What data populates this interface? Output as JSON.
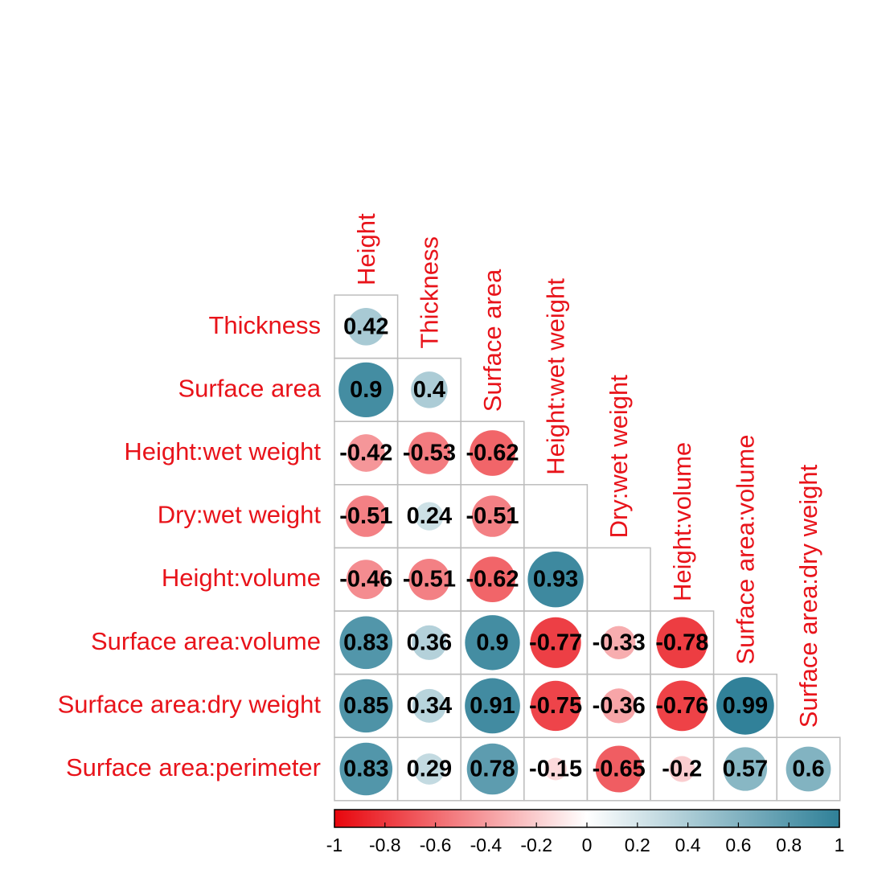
{
  "chart_data": {
    "type": "heatmap",
    "subtype": "correlation-matrix-lower-triangle",
    "variables": [
      "Height",
      "Thickness",
      "Surface area",
      "Height:wet weight",
      "Dry:wet weight",
      "Height:volume",
      "Surface area:volume",
      "Surface area:dry weight",
      "Surface area:perimeter"
    ],
    "row_labels": [
      "Thickness",
      "Surface area",
      "Height:wet weight",
      "Dry:wet weight",
      "Height:volume",
      "Surface area:volume",
      "Surface area:dry weight",
      "Surface area:perimeter"
    ],
    "col_labels": [
      "Height",
      "Thickness",
      "Surface area",
      "Height:wet weight",
      "Dry:wet weight",
      "Height:volume",
      "Surface area:volume",
      "Surface area:dry weight"
    ],
    "cells": [
      {
        "row": 0,
        "col": 0,
        "value": 0.42,
        "label": "0.42"
      },
      {
        "row": 1,
        "col": 0,
        "value": 0.9,
        "label": "0.9"
      },
      {
        "row": 1,
        "col": 1,
        "value": 0.4,
        "label": "0.4"
      },
      {
        "row": 2,
        "col": 0,
        "value": -0.42,
        "label": "-0.42"
      },
      {
        "row": 2,
        "col": 1,
        "value": -0.53,
        "label": "-0.53"
      },
      {
        "row": 2,
        "col": 2,
        "value": -0.62,
        "label": "-0.62"
      },
      {
        "row": 3,
        "col": 0,
        "value": -0.51,
        "label": "-0.51"
      },
      {
        "row": 3,
        "col": 1,
        "value": 0.24,
        "label": "0.24"
      },
      {
        "row": 3,
        "col": 2,
        "value": -0.51,
        "label": "-0.51"
      },
      {
        "row": 4,
        "col": 0,
        "value": -0.46,
        "label": "-0.46"
      },
      {
        "row": 4,
        "col": 1,
        "value": -0.51,
        "label": "-0.51"
      },
      {
        "row": 4,
        "col": 2,
        "value": -0.62,
        "label": "-0.62"
      },
      {
        "row": 4,
        "col": 3,
        "value": 0.93,
        "label": "0.93"
      },
      {
        "row": 5,
        "col": 0,
        "value": 0.83,
        "label": "0.83"
      },
      {
        "row": 5,
        "col": 1,
        "value": 0.36,
        "label": "0.36"
      },
      {
        "row": 5,
        "col": 2,
        "value": 0.9,
        "label": "0.9"
      },
      {
        "row": 5,
        "col": 3,
        "value": -0.77,
        "label": "-0.77"
      },
      {
        "row": 5,
        "col": 4,
        "value": -0.33,
        "label": "-0.33"
      },
      {
        "row": 5,
        "col": 5,
        "value": -0.78,
        "label": "-0.78"
      },
      {
        "row": 6,
        "col": 0,
        "value": 0.85,
        "label": "0.85"
      },
      {
        "row": 6,
        "col": 1,
        "value": 0.34,
        "label": "0.34"
      },
      {
        "row": 6,
        "col": 2,
        "value": 0.91,
        "label": "0.91"
      },
      {
        "row": 6,
        "col": 3,
        "value": -0.75,
        "label": "-0.75"
      },
      {
        "row": 6,
        "col": 4,
        "value": -0.36,
        "label": "-0.36"
      },
      {
        "row": 6,
        "col": 5,
        "value": -0.76,
        "label": "-0.76"
      },
      {
        "row": 6,
        "col": 6,
        "value": 0.99,
        "label": "0.99"
      },
      {
        "row": 7,
        "col": 0,
        "value": 0.83,
        "label": "0.83"
      },
      {
        "row": 7,
        "col": 1,
        "value": 0.29,
        "label": "0.29"
      },
      {
        "row": 7,
        "col": 2,
        "value": 0.78,
        "label": "0.78"
      },
      {
        "row": 7,
        "col": 3,
        "value": -0.15,
        "label": "-0.15"
      },
      {
        "row": 7,
        "col": 4,
        "value": -0.65,
        "label": "-0.65"
      },
      {
        "row": 7,
        "col": 5,
        "value": -0.2,
        "label": "-0.2"
      },
      {
        "row": 7,
        "col": 6,
        "value": 0.57,
        "label": "0.57"
      },
      {
        "row": 7,
        "col": 7,
        "value": 0.6,
        "label": "0.6"
      }
    ],
    "color_scale": {
      "range": [
        -1,
        1
      ],
      "ticks": [
        -1,
        -0.8,
        -0.6,
        -0.4,
        -0.2,
        0,
        0.2,
        0.4,
        0.6,
        0.8,
        1
      ],
      "tick_labels": [
        "-1",
        "-0.8",
        "-0.6",
        "-0.4",
        "-0.2",
        "0",
        "0.2",
        "0.4",
        "0.6",
        "0.8",
        "1"
      ],
      "negative_color": "#e8060d",
      "zero_color": "#ffffff",
      "positive_color": "#2f8098",
      "placement": "bottom"
    },
    "label_color": "#e8131a",
    "grid_color": "#bdbdbd"
  }
}
